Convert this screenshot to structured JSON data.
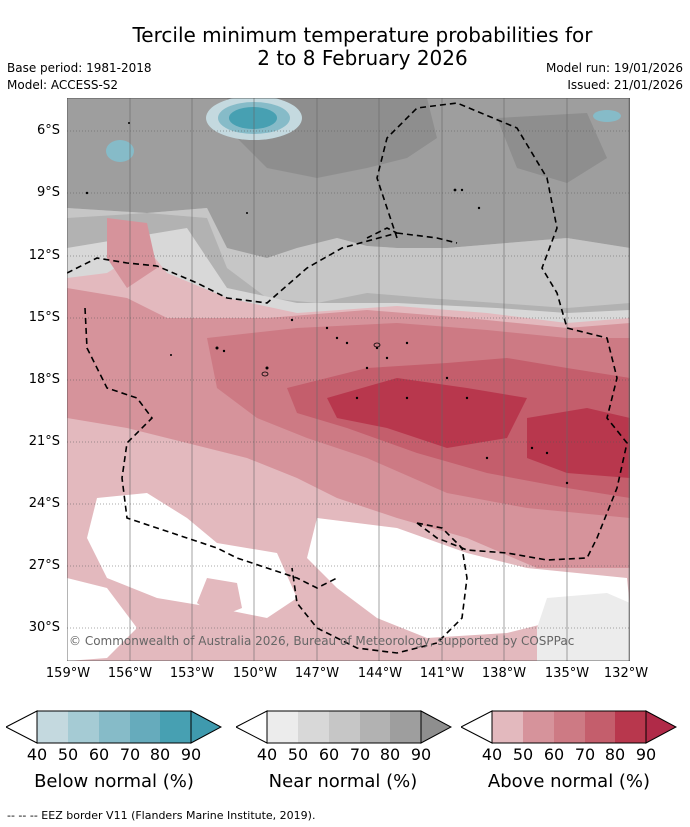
{
  "title": {
    "line1": "Tercile minimum temperature probabilities for",
    "line2": "2 to 8 February 2026"
  },
  "meta": {
    "base_period": "Base period: 1981-2018",
    "model": "Model: ACCESS-S2",
    "model_run": "Model run: 19/01/2026",
    "issued": "Issued: 21/01/2026"
  },
  "map": {
    "lat_labels": [
      "6°S",
      "9°S",
      "12°S",
      "15°S",
      "18°S",
      "21°S",
      "24°S",
      "27°S",
      "30°S"
    ],
    "lon_labels": [
      "159°W",
      "156°W",
      "153°W",
      "150°W",
      "147°W",
      "144°W",
      "141°W",
      "138°W",
      "135°W",
      "132°W"
    ],
    "copyright": "© Commonwealth of Australia 2026, Bureau of Meteorology, supported by COSPPac",
    "colors": {
      "below": [
        "#c4d9df",
        "#a5cbd4",
        "#86bbc8",
        "#66abbc",
        "#47a0b2"
      ],
      "near": [
        "#ececec",
        "#d8d8d8",
        "#c6c6c6",
        "#b2b2b2",
        "#9e9e9e"
      ],
      "above": [
        "#e3b9be",
        "#d6939b",
        "#cd7a84",
        "#c45e6c",
        "#b8374d"
      ]
    }
  },
  "colorbars": [
    {
      "label": "Below normal (%)",
      "ticks": [
        "40",
        "50",
        "60",
        "70",
        "80",
        "90"
      ],
      "colors": [
        "#c4d9df",
        "#a5cbd4",
        "#86bbc8",
        "#66abbc",
        "#47a0b2"
      ],
      "end": "#3f9aae"
    },
    {
      "label": "Near normal (%)",
      "ticks": [
        "40",
        "50",
        "60",
        "70",
        "80",
        "90"
      ],
      "colors": [
        "#ececec",
        "#d8d8d8",
        "#c6c6c6",
        "#b2b2b2",
        "#9e9e9e"
      ],
      "end": "#8e8e8e"
    },
    {
      "label": "Above normal (%)",
      "ticks": [
        "40",
        "50",
        "60",
        "70",
        "80",
        "90"
      ],
      "colors": [
        "#e3b9be",
        "#d6939b",
        "#cd7a84",
        "#c45e6c",
        "#b8374d"
      ],
      "end": "#b02a48"
    }
  ],
  "footer": "--  --  -- EEZ border V11 (Flanders Marine Institute, 2019)."
}
